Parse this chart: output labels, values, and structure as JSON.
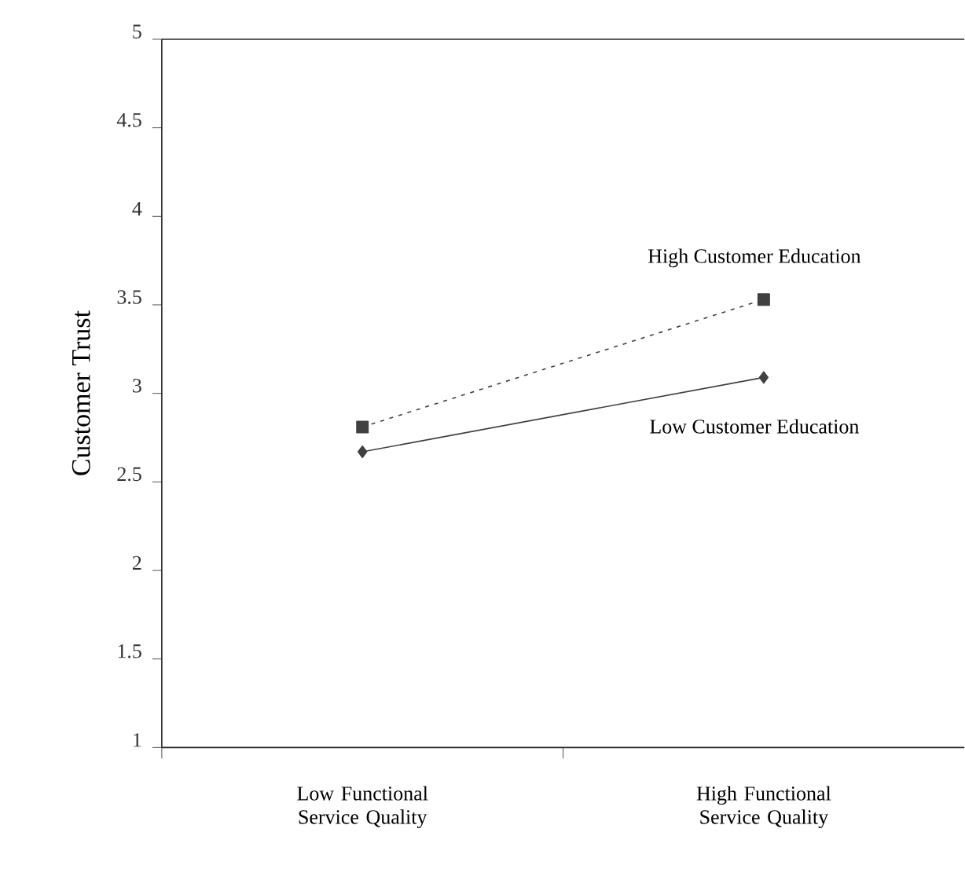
{
  "chart_data": {
    "type": "line",
    "ylabel": "Customer Trust",
    "categories": [
      "Low Functional Service Quality",
      "High Functional Service Quality"
    ],
    "ylim": [
      1,
      5
    ],
    "yticks": [
      1,
      1.5,
      2,
      2.5,
      3,
      3.5,
      4,
      4.5,
      5
    ],
    "legend": false,
    "grid": false,
    "series": [
      {
        "name": "High Customer Education",
        "color": "#404040",
        "values": [
          2.81,
          3.53
        ],
        "marker": "square",
        "line_style": "dotted"
      },
      {
        "name": "Low Customer Education",
        "color": "#404040",
        "values": [
          2.67,
          3.09
        ],
        "marker": "diamond",
        "line_style": "solid"
      }
    ]
  }
}
